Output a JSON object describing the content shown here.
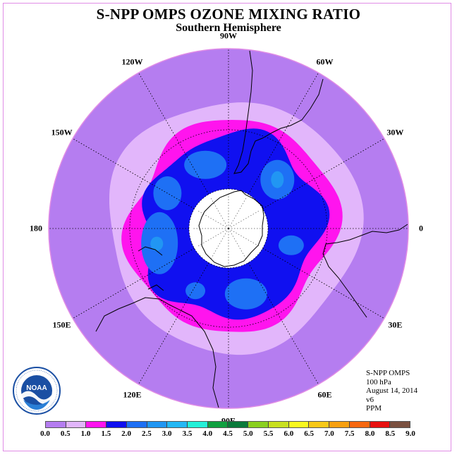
{
  "title": "S-NPP OMPS OZONE MIXING RATIO",
  "subtitle": "Southern Hemisphere",
  "longitude_labels": [
    {
      "text": "90W",
      "lon": -90
    },
    {
      "text": "60W",
      "lon": -60
    },
    {
      "text": "30W",
      "lon": -30
    },
    {
      "text": "0",
      "lon": 0
    },
    {
      "text": "30E",
      "lon": 30
    },
    {
      "text": "60E",
      "lon": 60
    },
    {
      "text": "90E",
      "lon": 90
    },
    {
      "text": "120E",
      "lon": 120
    },
    {
      "text": "150E",
      "lon": 150
    },
    {
      "text": "180",
      "lon": 180
    },
    {
      "text": "150W",
      "lon": -150
    },
    {
      "text": "120W",
      "lon": -120
    }
  ],
  "info": {
    "instrument": "S-NPP OMPS",
    "level": "100 hPa",
    "date": "August 14, 2014",
    "version": "v6",
    "units": "PPM"
  },
  "logo": {
    "text": "NOAA",
    "icon": "noaa-logo-icon"
  },
  "colorbar": {
    "ticks": [
      "0.0",
      "0.5",
      "1.0",
      "1.5",
      "2.0",
      "2.5",
      "3.0",
      "3.5",
      "4.0",
      "4.5",
      "5.0",
      "5.5",
      "6.0",
      "6.5",
      "7.0",
      "7.5",
      "8.0",
      "8.5",
      "9.0"
    ],
    "colors": [
      "#b57df0",
      "#e2b6fb",
      "#ff14ee",
      "#1010f0",
      "#1e70f5",
      "#2196f3",
      "#24b8f5",
      "#24f0d8",
      "#10a040",
      "#0a7a3a",
      "#8ad020",
      "#c8e020",
      "#f8f820",
      "#f8c818",
      "#f8a010",
      "#f86810",
      "#e81010",
      "#7a5040"
    ]
  },
  "field": {
    "units": "PPM",
    "polar_hole_lat": -62,
    "regions": [
      {
        "range": "0.0-0.5",
        "color": "#b57df0",
        "note": "outer band, north of ~ -40 lat"
      },
      {
        "range": "0.5-1.0",
        "color": "#e2b6fb",
        "note": "ring around -45 lat"
      },
      {
        "range": "1.0-1.5",
        "color": "#ff14ee",
        "note": "ring around -52 lat"
      },
      {
        "range": "1.5-2.0",
        "color": "#1010f0",
        "note": "vortex ring -54 to -62 lat"
      },
      {
        "range": "2.0-2.5",
        "color": "#1e70f5",
        "note": "patches inside the vortex ring"
      }
    ]
  }
}
